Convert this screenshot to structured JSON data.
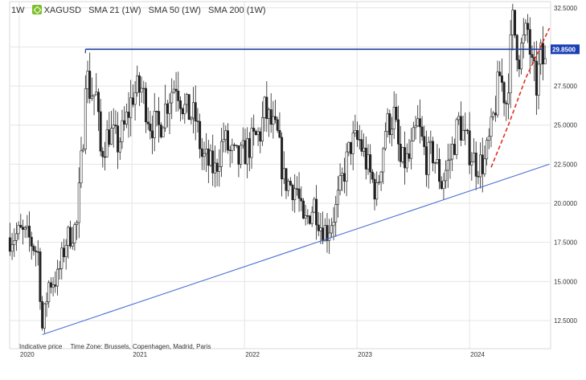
{
  "header": {
    "timeframe": "1W",
    "symbol": "XAGUSD",
    "indicators": [
      "SMA 21 (1W)",
      "SMA 50 (1W)",
      "SMA 200 (1W)"
    ]
  },
  "footer": {
    "price_note": "Indicative price",
    "timezone": "Time Zone: Brussels, Copenhagen, Madrid, Paris"
  },
  "colors": {
    "candle": "#222222",
    "resistance": "#1f3f9f",
    "support": "#4a6fd6",
    "trend_dashed": "#e0301e",
    "price_tag_bg": "#1a3fb5",
    "grid": "#e4e4e4"
  },
  "chart_data": {
    "type": "candlestick",
    "title": "",
    "xlabel": "",
    "ylabel": "",
    "grid": true,
    "ylim": [
      10.7,
      32.9
    ],
    "xlim": [
      "2019-12-01",
      "2024-09-20"
    ],
    "y_ticks": [
      "32.5000",
      "30.0000",
      "27.5000",
      "25.0000",
      "22.5000",
      "20.0000",
      "17.5000",
      "15.0000",
      "12.5000"
    ],
    "y_tick_values": [
      32.5,
      30.0,
      27.5,
      25.0,
      22.5,
      20.0,
      17.5,
      15.0,
      12.5
    ],
    "x_ticks": [
      "2020",
      "2021",
      "2022",
      "2023",
      "2024"
    ],
    "x_tick_dates": [
      "2020-01-01",
      "2021-01-01",
      "2022-01-01",
      "2023-01-01",
      "2024-01-01"
    ],
    "last_price": "29.8500",
    "last_price_value": 29.85,
    "resistance_line": {
      "from": [
        "2020-08-03",
        29.85
      ],
      "to": [
        "2024-08-26",
        29.85
      ]
    },
    "support_line": {
      "from": [
        "2020-03-16",
        11.6
      ],
      "to": [
        "2024-09-16",
        22.5
      ]
    },
    "dashed_trend_line": {
      "points": [
        [
          "2024-03-11",
          22.3
        ],
        [
          "2024-05-06",
          25.0
        ],
        [
          "2024-07-01",
          28.0
        ],
        [
          "2024-09-16",
          31.2
        ]
      ]
    },
    "series": [
      {
        "period": "weekly",
        "points": [
          [
            "2019-12-02",
            17.8
          ],
          [
            "2020-01-06",
            18.1
          ],
          [
            "2020-02-03",
            17.7
          ],
          [
            "2020-03-02",
            16.8
          ],
          [
            "2020-03-16",
            12.0
          ],
          [
            "2020-04-06",
            14.9
          ],
          [
            "2020-05-04",
            15.2
          ],
          [
            "2020-06-01",
            17.6
          ],
          [
            "2020-07-06",
            18.6
          ],
          [
            "2020-07-27",
            24.5
          ],
          [
            "2020-08-03",
            28.5
          ],
          [
            "2020-08-17",
            27.3
          ],
          [
            "2020-09-07",
            26.8
          ],
          [
            "2020-09-21",
            23.2
          ],
          [
            "2020-10-19",
            24.6
          ],
          [
            "2020-11-16",
            23.8
          ],
          [
            "2020-12-07",
            24.8
          ],
          [
            "2021-01-04",
            27.0
          ],
          [
            "2021-02-01",
            27.3
          ],
          [
            "2021-03-01",
            25.2
          ],
          [
            "2021-03-29",
            24.8
          ],
          [
            "2021-05-03",
            27.0
          ],
          [
            "2021-05-24",
            27.8
          ],
          [
            "2021-06-21",
            26.0
          ],
          [
            "2021-07-26",
            25.4
          ],
          [
            "2021-08-16",
            23.0
          ],
          [
            "2021-09-27",
            22.1
          ],
          [
            "2021-10-25",
            24.2
          ],
          [
            "2021-11-15",
            23.2
          ],
          [
            "2021-12-13",
            22.7
          ],
          [
            "2022-01-17",
            23.7
          ],
          [
            "2022-02-21",
            24.5
          ],
          [
            "2022-03-07",
            25.9
          ],
          [
            "2022-04-18",
            24.2
          ],
          [
            "2022-05-09",
            21.5
          ],
          [
            "2022-06-20",
            20.9
          ],
          [
            "2022-07-11",
            18.5
          ],
          [
            "2022-08-15",
            20.0
          ],
          [
            "2022-09-05",
            18.6
          ],
          [
            "2022-09-26",
            18.2
          ],
          [
            "2022-10-24",
            19.6
          ],
          [
            "2022-11-14",
            21.5
          ],
          [
            "2022-12-12",
            23.8
          ],
          [
            "2023-01-09",
            24.0
          ],
          [
            "2023-02-13",
            21.8
          ],
          [
            "2023-03-06",
            20.6
          ],
          [
            "2023-04-03",
            24.8
          ],
          [
            "2023-05-01",
            25.6
          ],
          [
            "2023-05-22",
            22.5
          ],
          [
            "2023-06-19",
            22.8
          ],
          [
            "2023-07-17",
            25.0
          ],
          [
            "2023-08-14",
            22.8
          ],
          [
            "2023-09-04",
            23.2
          ],
          [
            "2023-10-02",
            21.3
          ],
          [
            "2023-10-30",
            22.9
          ],
          [
            "2023-11-27",
            25.2
          ],
          [
            "2023-12-18",
            24.0
          ],
          [
            "2024-01-22",
            22.5
          ],
          [
            "2024-02-19",
            22.6
          ],
          [
            "2024-03-11",
            24.5
          ],
          [
            "2024-04-08",
            28.2
          ],
          [
            "2024-04-29",
            26.5
          ],
          [
            "2024-05-20",
            31.5
          ],
          [
            "2024-06-10",
            29.5
          ],
          [
            "2024-07-08",
            31.0
          ],
          [
            "2024-07-22",
            28.5
          ],
          [
            "2024-08-05",
            27.5
          ],
          [
            "2024-08-19",
            29.3
          ],
          [
            "2024-09-02",
            28.8
          ]
        ]
      }
    ]
  }
}
